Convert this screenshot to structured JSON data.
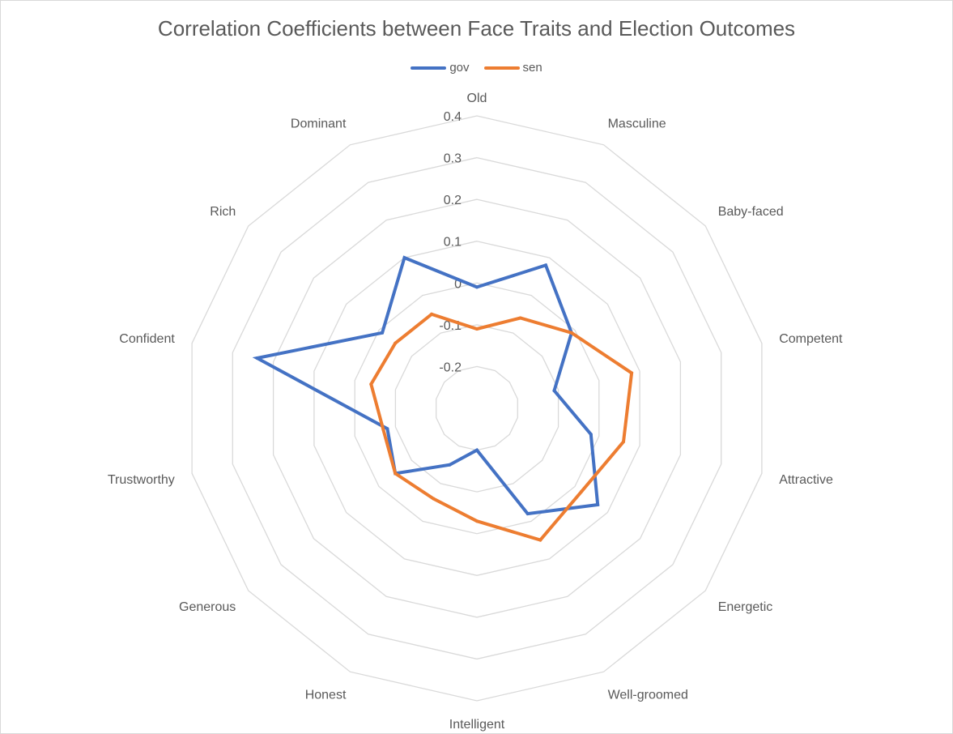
{
  "chart_data": {
    "type": "radar",
    "title": "Correlation Coefficients between Face Traits and Election Outcomes",
    "categories": [
      "Old",
      "Masculine",
      "Baby-faced",
      "Competent",
      "Attractive",
      "Energetic",
      "Well-groomed",
      "Intelligent",
      "Honest",
      "Generous",
      "Trustworthy",
      "Confident",
      "Rich",
      "Dominant"
    ],
    "series": [
      {
        "name": "gov",
        "color": "#4472c4",
        "values": [
          -0.01,
          0.08,
          -0.01,
          -0.11,
          -0.02,
          0.07,
          -0.02,
          -0.2,
          -0.15,
          -0.05,
          -0.08,
          0.24,
          -0.01,
          0.1
        ]
      },
      {
        "name": "sen",
        "color": "#ed7d31",
        "values": [
          -0.11,
          -0.06,
          -0.01,
          0.08,
          0.06,
          0.02,
          0.05,
          -0.03,
          -0.06,
          -0.05,
          -0.07,
          -0.04,
          -0.05,
          -0.05
        ]
      }
    ],
    "r_axis": {
      "min": -0.3,
      "max": 0.4,
      "step": 0.1,
      "tick_labels": [
        "-0.2",
        "-0.1",
        "0",
        "0.1",
        "0.2",
        "0.3",
        "0.4"
      ]
    },
    "legend_position": "top",
    "grid": true,
    "grid_color": "#d9d9d9"
  }
}
